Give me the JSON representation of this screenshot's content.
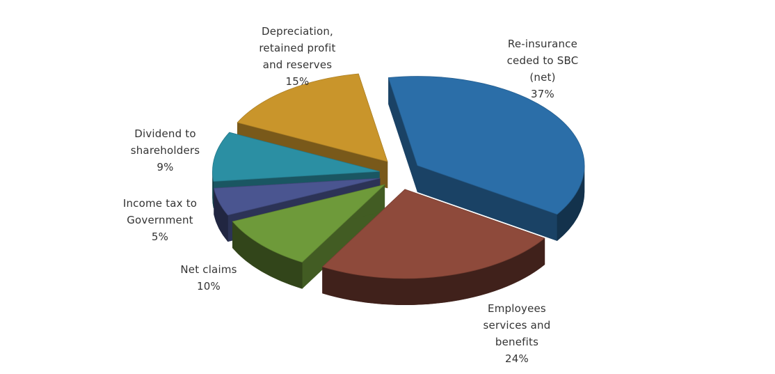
{
  "chart_data": {
    "type": "pie",
    "style": "3d-exploded",
    "slices": [
      {
        "key": "reinsurance",
        "label_lines": [
          "Re-insurance",
          "ceded to SBC",
          "(net)"
        ],
        "value": 37,
        "value_label": "37%",
        "color": "#2b6ea8"
      },
      {
        "key": "employees",
        "label_lines": [
          "Employees",
          "services and",
          "benefits"
        ],
        "value": 24,
        "value_label": "24%",
        "color": "#8e4a3b"
      },
      {
        "key": "netclaims",
        "label_lines": [
          "Net claims"
        ],
        "value": 10,
        "value_label": "10%",
        "color": "#6e9a3a"
      },
      {
        "key": "incometax",
        "label_lines": [
          "Income tax to",
          "Government"
        ],
        "value": 5,
        "value_label": "5%",
        "color": "#4a5590"
      },
      {
        "key": "dividend",
        "label_lines": [
          "Dividend to",
          "shareholders"
        ],
        "value": 9,
        "value_label": "9%",
        "color": "#2b8fa3"
      },
      {
        "key": "depreciation",
        "label_lines": [
          "Depreciation,",
          "retained profit",
          "and reserves"
        ],
        "value": 15,
        "value_label": "15%",
        "color": "#c9952b"
      }
    ]
  }
}
